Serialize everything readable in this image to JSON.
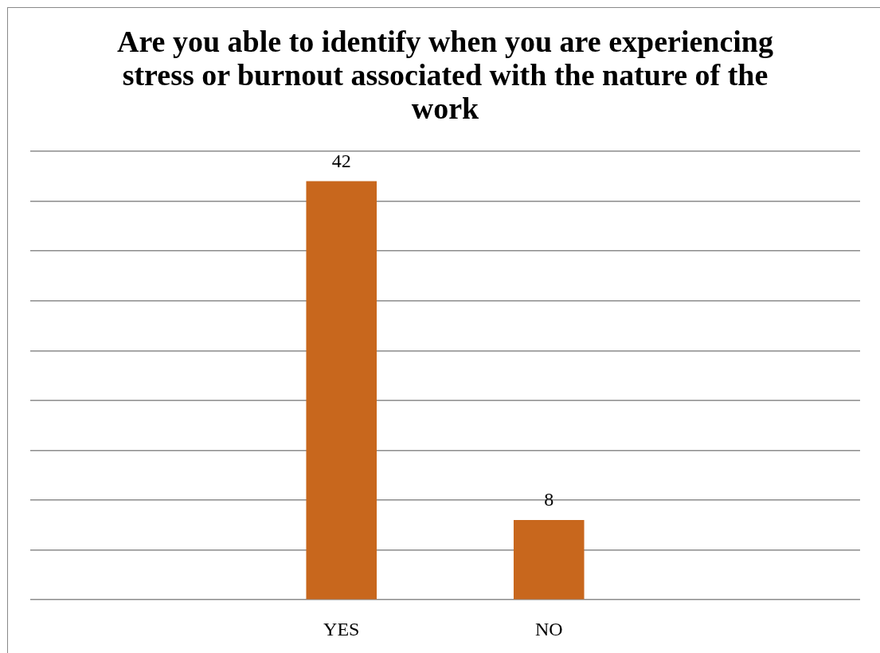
{
  "chart_data": {
    "type": "bar",
    "title": "Are you able to identify when you are experiencing stress or burnout associated with the nature of the work",
    "categories": [
      null,
      "YES",
      "NO",
      null
    ],
    "values": [
      null,
      42,
      8,
      null
    ],
    "color": "#c8671d",
    "ylim": [
      0,
      45
    ],
    "yticks": [
      0,
      5,
      10,
      15,
      20,
      25,
      30,
      35,
      40,
      45
    ],
    "tick_labels": "x",
    "grid": "y",
    "data_labels": true,
    "legend": false
  }
}
